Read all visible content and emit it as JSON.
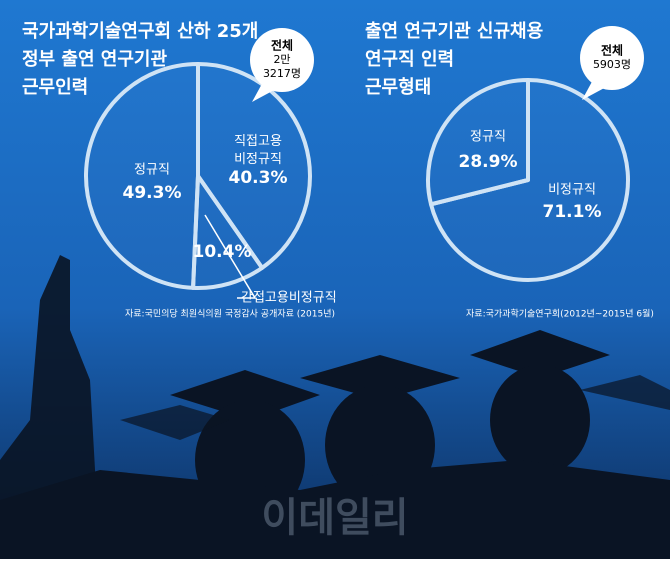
{
  "chart_data": [
    {
      "type": "pie",
      "title": [
        "국가과학기술연구회 산하 25개",
        "정부 출연 연구기관",
        "근무인력"
      ],
      "total_label": "전체",
      "total": [
        "2만",
        "3217명"
      ],
      "categories": [
        "직접고용 비정규직",
        "간접고용비정규직",
        "정규직"
      ],
      "values": [
        40.3,
        10.4,
        49.3
      ],
      "value_labels": [
        "40.3%",
        "10.4%",
        "49.3%"
      ],
      "source": "자료:국민의당 최원식의원 국정감사 공개자료 (2015년)",
      "color": "#cfe3f5"
    },
    {
      "type": "pie",
      "title": [
        "출연 연구기관 신규채용",
        "연구직 인력",
        "근무형태"
      ],
      "total_label": "전체",
      "total": [
        "5903명"
      ],
      "categories": [
        "비정규직",
        "정규직"
      ],
      "values": [
        71.1,
        28.9
      ],
      "value_labels": [
        "71.1%",
        "28.9%"
      ],
      "source": "자료:국가과학기술연구회(2012년~2015년 6월)",
      "color": "#cfe3f5"
    }
  ],
  "watermark": "이데일리"
}
